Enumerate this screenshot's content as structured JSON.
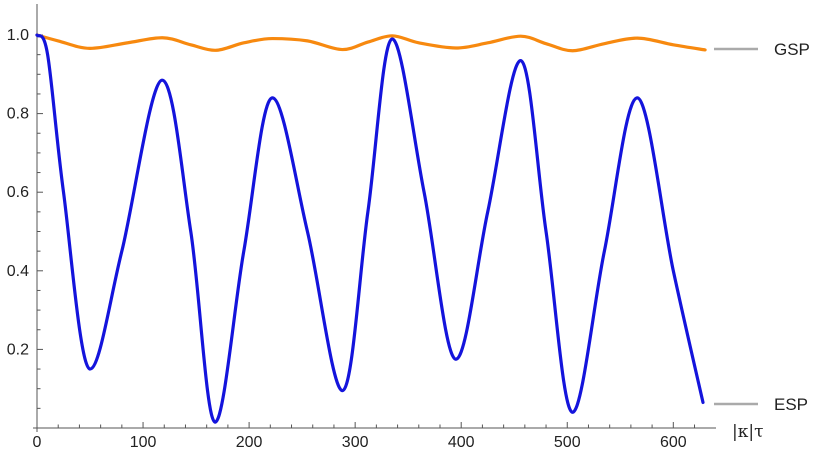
{
  "chart_data": {
    "type": "line",
    "title": "",
    "xlabel": "|κ|τ",
    "ylabel": "",
    "xlim": [
      0,
      630
    ],
    "ylim": [
      0,
      1.0
    ],
    "x_ticks": [
      0,
      100,
      200,
      300,
      400,
      500,
      600
    ],
    "x_tick_labels": [
      "0",
      "100",
      "200",
      "300",
      "400",
      "500",
      "600"
    ],
    "y_ticks": [
      0.2,
      0.4,
      0.6,
      0.8,
      1.0
    ],
    "y_tick_labels": [
      "0.2",
      "0.4",
      "0.6",
      "0.8",
      "1.0"
    ],
    "grid": false,
    "legend_placement": "right",
    "series": [
      {
        "name": "GSP",
        "color": "#f7890f",
        "x": [
          0,
          20,
          50,
          85,
          118,
          145,
          168,
          195,
          222,
          255,
          288,
          312,
          335,
          360,
          395,
          425,
          456,
          480,
          505,
          535,
          566,
          600,
          630
        ],
        "y": [
          1.0,
          0.985,
          0.966,
          0.98,
          0.993,
          0.975,
          0.961,
          0.98,
          0.991,
          0.985,
          0.963,
          0.982,
          0.998,
          0.98,
          0.967,
          0.98,
          0.997,
          0.978,
          0.96,
          0.978,
          0.992,
          0.975,
          0.962
        ]
      },
      {
        "name": "ESP",
        "color": "#1414dc",
        "x": [
          0,
          10,
          25,
          50,
          80,
          118,
          145,
          168,
          195,
          222,
          255,
          288,
          312,
          335,
          365,
          395,
          425,
          456,
          480,
          505,
          535,
          566,
          600,
          628
        ],
        "y": [
          1.0,
          0.95,
          0.6,
          0.15,
          0.45,
          0.885,
          0.5,
          0.015,
          0.45,
          0.84,
          0.5,
          0.095,
          0.55,
          0.99,
          0.6,
          0.175,
          0.55,
          0.935,
          0.5,
          0.04,
          0.45,
          0.84,
          0.4,
          0.065
        ]
      }
    ],
    "legend": [
      {
        "label": "GSP",
        "color": "#aaaaaa"
      },
      {
        "label": "ESP",
        "color": "#aaaaaa"
      }
    ]
  }
}
